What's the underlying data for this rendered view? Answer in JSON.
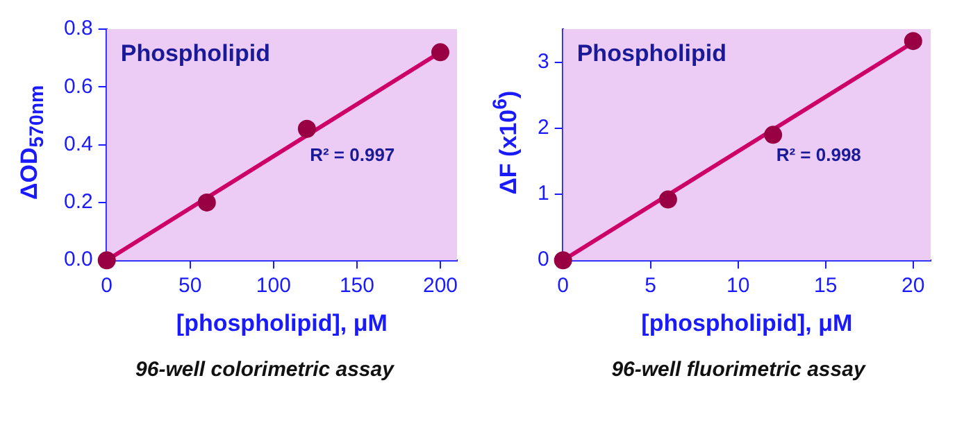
{
  "chart_data": [
    {
      "type": "scatter",
      "title": "Phospholipid",
      "xlabel": "[phospholipid], μM",
      "ylabel": "ΔOD$_{570nm}$",
      "xlim": [
        0,
        210
      ],
      "xticks": [
        0,
        50,
        100,
        150,
        200
      ],
      "ylim": [
        0,
        0.8
      ],
      "yticks": [
        {
          "value": 0,
          "label": "0.0"
        },
        0.2,
        0.4,
        0.6,
        0.8
      ],
      "grid": false,
      "legend": false,
      "series": [
        {
          "color": "#990044",
          "marker": "circle",
          "x": [
            0,
            60,
            120,
            200
          ],
          "values": [
            0,
            0.2,
            0.455,
            0.72
          ]
        },
        {
          "type": "line",
          "color": "#cc0066",
          "x": [
            0,
            200
          ],
          "values": [
            0,
            0.72
          ]
        }
      ],
      "annotations": [
        "R² = 0.997",
        "96-well colorimetric assay"
      ]
    },
    {
      "type": "scatter",
      "title": "Phospholipid",
      "xlabel": "[phospholipid], μM",
      "ylabel": "ΔF (x10$^{6}$)",
      "xlim": [
        0,
        21
      ],
      "xticks": [
        0,
        5,
        10,
        15,
        20
      ],
      "ylim": [
        0,
        3.5
      ],
      "yticks": [
        0,
        1,
        2,
        3
      ],
      "grid": false,
      "legend": false,
      "series": [
        {
          "color": "#990044",
          "marker": "circle",
          "x": [
            0,
            6,
            12,
            20
          ],
          "values": [
            0,
            0.92,
            1.9,
            3.32
          ]
        },
        {
          "type": "line",
          "color": "#cc0066",
          "x": [
            0,
            20
          ],
          "values": [
            0,
            3.3
          ]
        }
      ],
      "annotations": [
        "R² = 0.998",
        "96-well fluorimetric assay"
      ]
    }
  ]
}
